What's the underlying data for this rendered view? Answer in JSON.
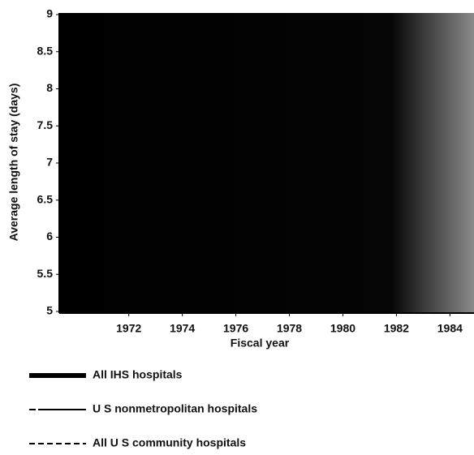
{
  "chart_data": {
    "type": "line",
    "y_label": "Average length of stay (days)",
    "x_label": "Fiscal year",
    "xlim": [
      1969.4,
      1984.9
    ],
    "xticks": [
      1972,
      1974,
      1976,
      1978,
      1980,
      1982,
      1984
    ],
    "ylim": [
      5,
      9
    ],
    "yticks": [
      5,
      5.5,
      6,
      6.5,
      7,
      7.5,
      8,
      8.5,
      9
    ],
    "series": [
      {
        "name": "All IHS hospitals",
        "color": "#000000",
        "style": "thick"
      },
      {
        "name": "U S nonmetropolitan hospitals",
        "color": "#000000",
        "style": "solid"
      },
      {
        "name": "All U S community hospitals",
        "color": "#000000",
        "style": "dashed"
      }
    ]
  }
}
